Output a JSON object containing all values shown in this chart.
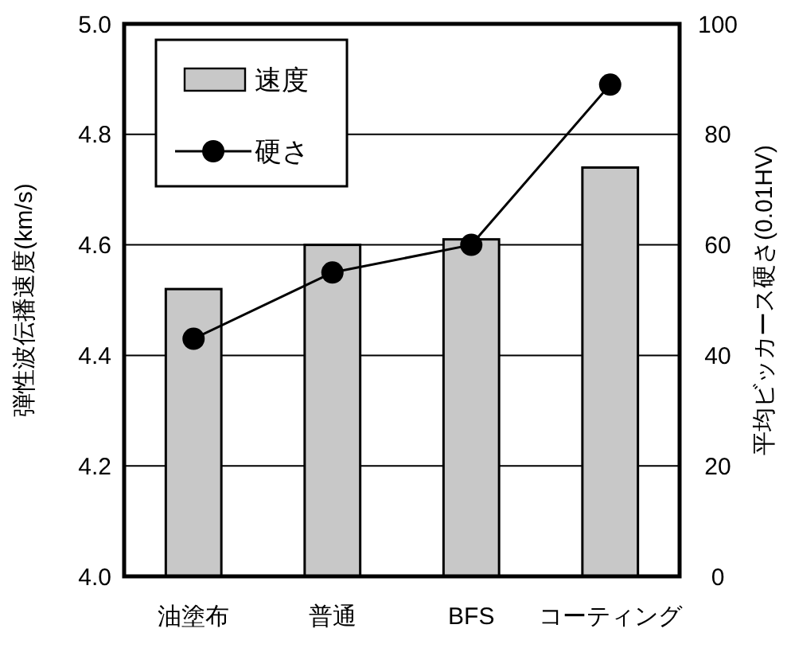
{
  "chart_data": {
    "type": "bar",
    "categories": [
      "油塗布",
      "普通",
      "BFS",
      "コーティング"
    ],
    "series": [
      {
        "name": "速度",
        "color": "#c8c8c8",
        "values": [
          4.52,
          4.6,
          4.61,
          4.74
        ]
      },
      {
        "name": "硬さ",
        "type": "line",
        "axis": "y2",
        "color": "#000000",
        "values": [
          43,
          55,
          60,
          89
        ]
      }
    ],
    "ylabel": "弾性波伝播速度(km/s)",
    "y2label": "平均ビッカース硬さ(0.01HV)",
    "ylim": [
      4.0,
      5.0
    ],
    "yticks": [
      {
        "value": 4.0,
        "label": "4.0"
      },
      {
        "value": 4.2,
        "label": "4.2"
      },
      {
        "value": 4.4,
        "label": "4.4"
      },
      {
        "value": 4.6,
        "label": "4.6"
      },
      {
        "value": 4.8,
        "label": "4.8"
      },
      {
        "value": 5.0,
        "label": "5.0"
      }
    ],
    "y2lim": [
      0,
      100
    ],
    "y2ticks": [
      0,
      20,
      40,
      60,
      80,
      100
    ],
    "grid": "y",
    "legend": "top left",
    "marker": "circle",
    "line_style": "solid"
  }
}
